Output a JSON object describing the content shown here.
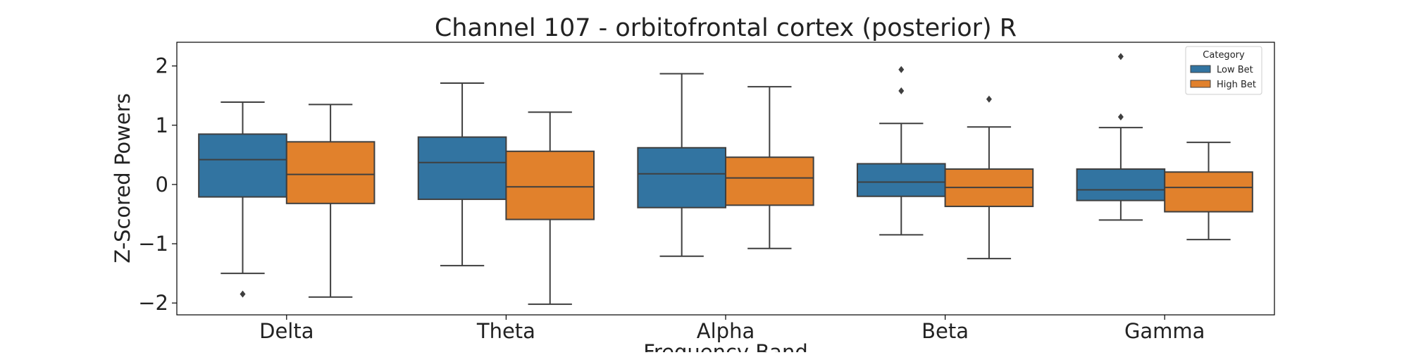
{
  "chart_data": {
    "type": "box",
    "title": "Channel 107 - orbitofrontal cortex (posterior) R",
    "xlabel": "Frequency Band",
    "ylabel": "Z-Scored Powers",
    "categories": [
      "Delta",
      "Theta",
      "Alpha",
      "Beta",
      "Gamma"
    ],
    "ylim": [
      -2.2,
      2.4
    ],
    "yticks": [
      {
        "value": 2,
        "label": "2"
      },
      {
        "value": 1,
        "label": "1"
      },
      {
        "value": 0,
        "label": "0"
      },
      {
        "value": -1,
        "label": "−1"
      },
      {
        "value": -2,
        "label": "−2"
      }
    ],
    "grid": false,
    "legend": {
      "title": "Category",
      "position": "top-right"
    },
    "series": [
      {
        "name": "Low Bet",
        "color": "#3274a1",
        "boxes": [
          {
            "whisker_low": -1.5,
            "q1": -0.21,
            "median": 0.42,
            "q3": 0.85,
            "whisker_high": 1.39,
            "outliers": [
              -1.85
            ]
          },
          {
            "whisker_low": -1.37,
            "q1": -0.25,
            "median": 0.37,
            "q3": 0.8,
            "whisker_high": 1.71,
            "outliers": []
          },
          {
            "whisker_low": -1.21,
            "q1": -0.39,
            "median": 0.18,
            "q3": 0.62,
            "whisker_high": 1.87,
            "outliers": []
          },
          {
            "whisker_low": -0.85,
            "q1": -0.2,
            "median": 0.04,
            "q3": 0.35,
            "whisker_high": 1.03,
            "outliers": [
              1.94,
              1.58
            ]
          },
          {
            "whisker_low": -0.6,
            "q1": -0.27,
            "median": -0.09,
            "q3": 0.26,
            "whisker_high": 0.96,
            "outliers": [
              2.16,
              1.14
            ]
          }
        ]
      },
      {
        "name": "High Bet",
        "color": "#e1812c",
        "boxes": [
          {
            "whisker_low": -1.9,
            "q1": -0.32,
            "median": 0.17,
            "q3": 0.72,
            "whisker_high": 1.35,
            "outliers": []
          },
          {
            "whisker_low": -2.02,
            "q1": -0.59,
            "median": -0.04,
            "q3": 0.56,
            "whisker_high": 1.22,
            "outliers": []
          },
          {
            "whisker_low": -1.08,
            "q1": -0.35,
            "median": 0.11,
            "q3": 0.46,
            "whisker_high": 1.65,
            "outliers": []
          },
          {
            "whisker_low": -1.25,
            "q1": -0.37,
            "median": -0.05,
            "q3": 0.26,
            "whisker_high": 0.97,
            "outliers": [
              1.44
            ]
          },
          {
            "whisker_low": -0.93,
            "q1": -0.46,
            "median": -0.05,
            "q3": 0.21,
            "whisker_high": 0.71,
            "outliers": []
          }
        ]
      }
    ]
  }
}
